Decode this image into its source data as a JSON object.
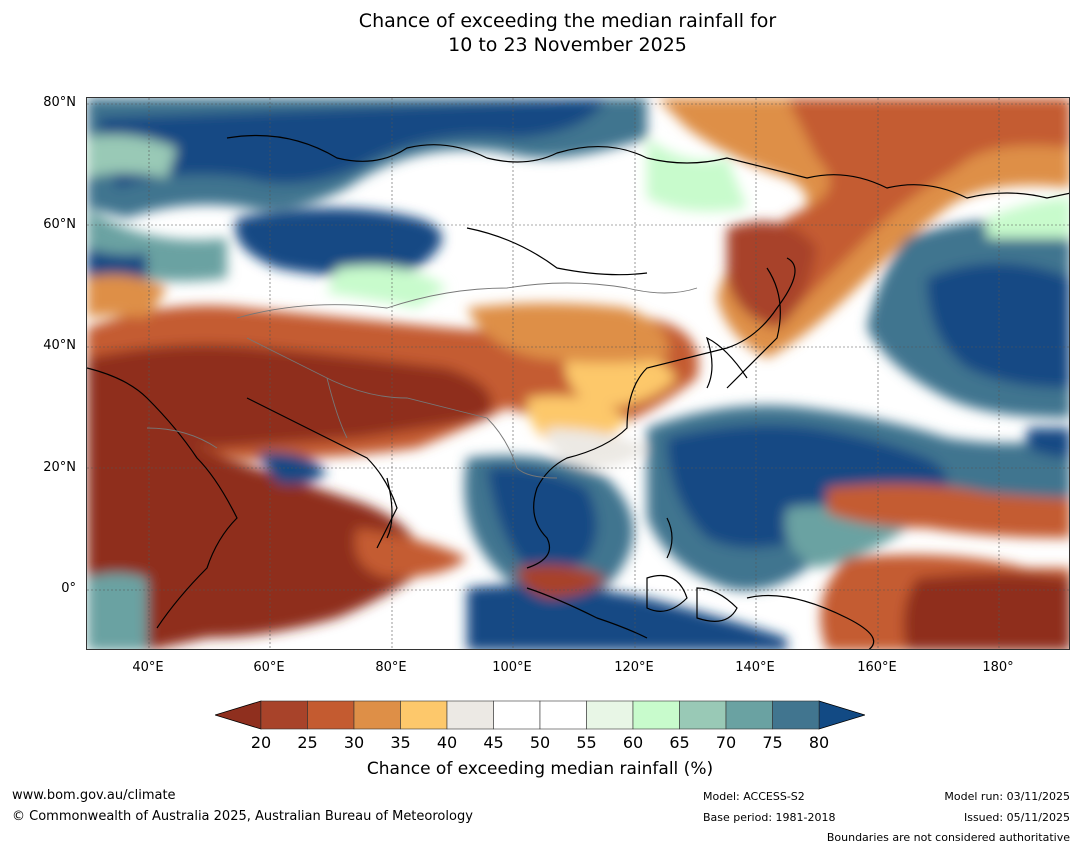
{
  "title": {
    "line1": "Chance of exceeding the median rainfall for",
    "line2": "10 to 23 November 2025"
  },
  "map": {
    "lat_labels": [
      "80°N",
      "60°N",
      "40°N",
      "20°N",
      "0°"
    ],
    "lon_labels": [
      "40°E",
      "60°E",
      "80°E",
      "100°E",
      "120°E",
      "140°E",
      "160°E",
      "180°"
    ]
  },
  "colorbar": {
    "ticks": [
      "20",
      "25",
      "30",
      "35",
      "40",
      "45",
      "50",
      "55",
      "60",
      "65",
      "70",
      "75",
      "80"
    ],
    "colors": [
      "#a8432a",
      "#c45b30",
      "#de8f47",
      "#fdc86b",
      "#ece9e4",
      "#ffffff",
      "#ffffff",
      "#e8f6e6",
      "#c8fbcc",
      "#99c9b6",
      "#6aa2a2",
      "#41758f"
    ],
    "under_color": "#8f2f1e",
    "over_color": "#124a84",
    "label": "Chance of exceeding median rainfall (%)"
  },
  "footer": {
    "website": "www.bom.gov.au/climate",
    "copyright": "© Commonwealth of Australia 2025, Australian Bureau of Meteorology",
    "model": "Model: ACCESS-S2",
    "base_period": "Base period: 1981-2018",
    "model_run": "Model run: 03/11/2025",
    "issued": "Issued: 05/11/2025",
    "disclaimer": "Boundaries are not considered authoritative"
  }
}
